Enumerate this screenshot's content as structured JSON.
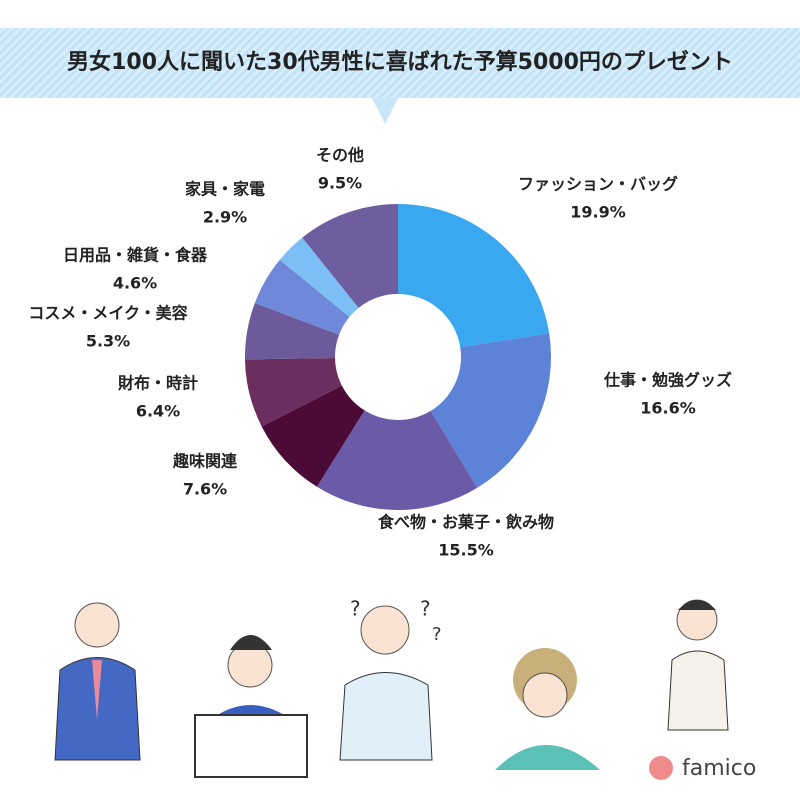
{
  "chart_data": {
    "type": "donut",
    "title": "男女100人に聞いた30代男性に喜ばれた予算5000円のプレゼント",
    "categories": [
      "ファッション・バッグ",
      "仕事・勉強グッズ",
      "食べ物・お菓子・飲み物",
      "趣味関連",
      "財布・時計",
      "コスメ・メイク・美容",
      "日用品・雑貨・食器",
      "家具・家電",
      "その他"
    ],
    "values": [
      19.9,
      16.6,
      15.5,
      7.6,
      6.4,
      5.3,
      4.6,
      2.9,
      9.5
    ],
    "value_labels": [
      "19.9%",
      "16.6%",
      "15.5%",
      "7.6%",
      "6.4%",
      "5.3%",
      "4.6%",
      "2.9%",
      "9.5%"
    ],
    "colors": [
      "#3aa8f0",
      "#5d83d8",
      "#6a5aa8",
      "#4c0a36",
      "#6a2f5f",
      "#6d5a9a",
      "#6f89d8",
      "#7cbef6",
      "#6e5d9f"
    ]
  },
  "logo": "famico"
}
